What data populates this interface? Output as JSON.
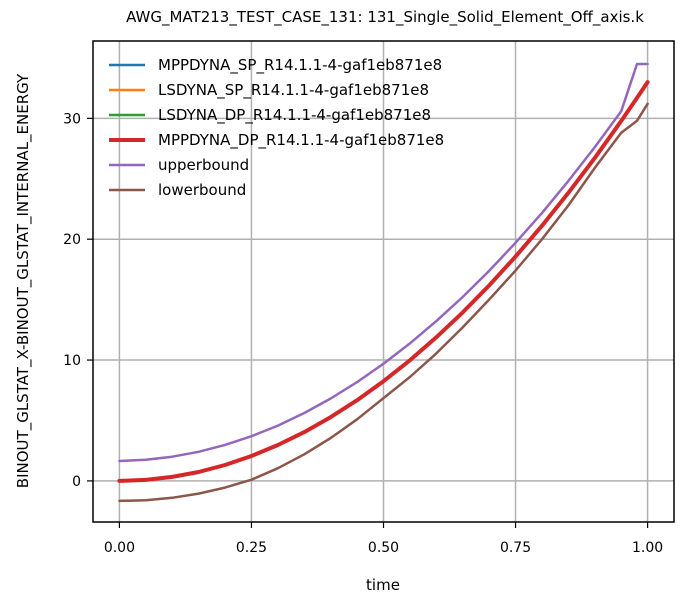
{
  "chart_data": {
    "type": "line",
    "title": "AWG_MAT213_TEST_CASE_131: 131_Single_Solid_Element_Off_axis.k",
    "xlabel": "time",
    "ylabel": "BINOUT_GLSTAT_X-BINOUT_GLSTAT_INTERNAL_ENERGY",
    "xlim": [
      -0.05,
      1.05
    ],
    "ylim": [
      -3.4,
      36.4
    ],
    "xticks": [
      "0.00",
      "0.25",
      "0.50",
      "0.75",
      "1.00"
    ],
    "yticks": [
      "0",
      "10",
      "20",
      "30"
    ],
    "grid": true,
    "legend_position": "top-left",
    "x": [
      0.0,
      0.05,
      0.1,
      0.15,
      0.2,
      0.25,
      0.3,
      0.35,
      0.4,
      0.45,
      0.5,
      0.55,
      0.6,
      0.65,
      0.7,
      0.75,
      0.8,
      0.85,
      0.9,
      0.95,
      0.98,
      1.0
    ],
    "series": [
      {
        "name": "MPPDYNA_SP_R14.1.1-4-gaf1eb871e8",
        "color": "#1f77b4",
        "width": 2.5,
        "values": [
          0.0,
          0.08,
          0.33,
          0.74,
          1.32,
          2.06,
          2.97,
          4.04,
          5.28,
          6.68,
          8.25,
          9.98,
          11.88,
          13.94,
          16.17,
          18.56,
          21.12,
          23.84,
          26.73,
          29.78,
          31.69,
          33.0
        ]
      },
      {
        "name": "LSDYNA_SP_R14.1.1-4-gaf1eb871e8",
        "color": "#ff7f0e",
        "width": 2.5,
        "values": [
          0.0,
          0.08,
          0.33,
          0.74,
          1.32,
          2.06,
          2.97,
          4.04,
          5.28,
          6.68,
          8.25,
          9.98,
          11.88,
          13.94,
          16.17,
          18.56,
          21.12,
          23.84,
          26.73,
          29.78,
          31.69,
          33.0
        ]
      },
      {
        "name": "LSDYNA_DP_R14.1.1-4-gaf1eb871e8",
        "color": "#2ca02c",
        "width": 2.5,
        "values": [
          0.0,
          0.08,
          0.33,
          0.74,
          1.32,
          2.06,
          2.97,
          4.04,
          5.28,
          6.68,
          8.25,
          9.98,
          11.88,
          13.94,
          16.17,
          18.56,
          21.12,
          23.84,
          26.73,
          29.78,
          31.69,
          33.0
        ]
      },
      {
        "name": "MPPDYNA_DP_R14.1.1-4-gaf1eb871e8",
        "color": "#d62728",
        "width": 4,
        "values": [
          0.0,
          0.08,
          0.33,
          0.74,
          1.32,
          2.06,
          2.97,
          4.04,
          5.28,
          6.68,
          8.25,
          9.98,
          11.88,
          13.94,
          16.17,
          18.56,
          21.12,
          23.84,
          26.73,
          29.78,
          31.69,
          33.0
        ]
      },
      {
        "name": "upperbound",
        "color": "#9467bd",
        "width": 2.5,
        "values": [
          1.65,
          1.75,
          2.0,
          2.41,
          2.98,
          3.7,
          4.58,
          5.62,
          6.82,
          8.18,
          9.7,
          11.38,
          13.22,
          15.22,
          17.38,
          19.7,
          22.18,
          24.82,
          27.62,
          30.58,
          34.5,
          34.5
        ]
      },
      {
        "name": "lowerbound",
        "color": "#8c564b",
        "width": 2.5,
        "values": [
          -1.65,
          -1.6,
          -1.4,
          -1.05,
          -0.55,
          0.1,
          1.05,
          2.2,
          3.55,
          5.1,
          6.85,
          8.6,
          10.55,
          12.7,
          15.0,
          17.4,
          20.0,
          22.8,
          25.9,
          28.8,
          29.8,
          31.2
        ]
      }
    ]
  }
}
